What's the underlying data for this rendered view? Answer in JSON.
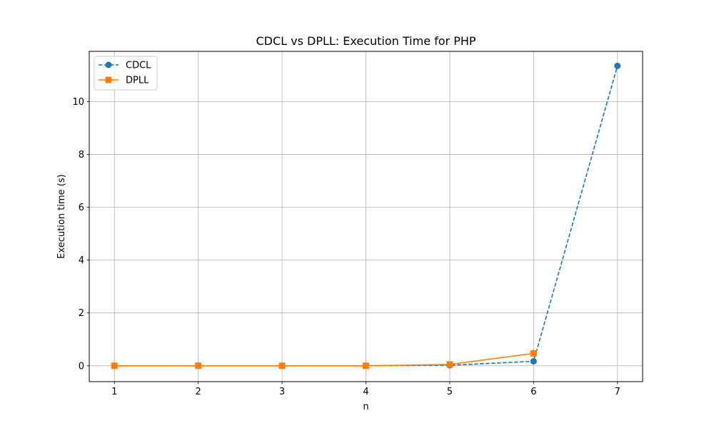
{
  "chart_data": {
    "type": "line",
    "title": "CDCL vs DPLL: Execution Time for PHP",
    "xlabel": "n",
    "ylabel": "Execution time (s)",
    "x": [
      1,
      2,
      3,
      4,
      5,
      6,
      7
    ],
    "xlim": [
      0.7,
      7.3
    ],
    "ylim": [
      -0.6,
      11.9
    ],
    "xticks": [
      1,
      2,
      3,
      4,
      5,
      6,
      7
    ],
    "yticks": [
      0,
      2,
      4,
      6,
      8,
      10
    ],
    "grid": true,
    "legend_position": "top-left",
    "series": [
      {
        "name": "CDCL",
        "x": [
          1,
          2,
          3,
          4,
          5,
          6,
          7
        ],
        "values": [
          0.0,
          0.0,
          0.0,
          0.0,
          0.02,
          0.17,
          11.35
        ],
        "color": "#1f77b4",
        "line_style": "dashed",
        "marker": "circle"
      },
      {
        "name": "DPLL",
        "x": [
          1,
          2,
          3,
          4,
          5,
          6
        ],
        "values": [
          0.0,
          0.0,
          0.0,
          0.0,
          0.05,
          0.47
        ],
        "color": "#ff7f0e",
        "line_style": "solid",
        "marker": "square"
      }
    ]
  }
}
